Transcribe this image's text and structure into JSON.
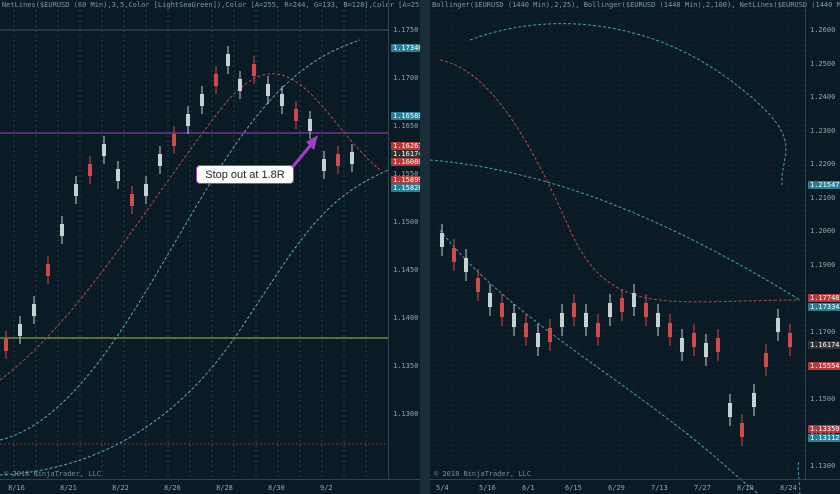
{
  "left_pane": {
    "header": "NetLines($EURUSD (60 Min),3,5,Color [LightSeaGreen]),Color [A=255, R=244, G=133, B=128],Color [A=255, R=0, G=131",
    "copyright": "© 2018 NinjaTrader, LLC",
    "x_labels": [
      "8/16",
      "8/21",
      "8/22",
      "8/26",
      "8/28",
      "8/30",
      "9/2"
    ],
    "y_labels": [
      "1.1750",
      "1.1700",
      "1.1650",
      "1.1550",
      "1.1500",
      "1.1450",
      "1.1400",
      "1.1350",
      "1.1300"
    ],
    "price_tags": [
      "1.17346",
      "1.16588",
      "1.16261",
      "1.16174",
      "1.16080",
      "1.15899",
      "1.15826"
    ],
    "price_tag_colors": [
      "#2a7f95",
      "#2a7f95",
      "#b33a3a",
      "#333333",
      "#b33a3a",
      "#b33a3a",
      "#2a7f95"
    ],
    "callout": "Stop out at 1.8R",
    "colors": {
      "purple_line": "#a040c0",
      "green_line": "#a8c040",
      "arrow": "#a040c0"
    }
  },
  "right_pane": {
    "header": "Bollinger($EURUSD (1440 Min),2,25), Bollinger($EURUSD (1440 Min),2,100), NetLines($EURUSD (1440 Min),3,5,Color",
    "copyright": "© 2018 NinjaTrader, LLC",
    "x_labels": [
      "5/4",
      "5/16",
      "6/1",
      "6/15",
      "6/29",
      "7/13",
      "7/27",
      "8/10",
      "8/24"
    ],
    "y_labels": [
      "1.2600",
      "1.2500",
      "1.2400",
      "1.2300",
      "1.2200",
      "1.2100",
      "1.2000",
      "1.1900",
      "1.1800",
      "1.1700",
      "1.1600",
      "1.1500",
      "1.1400",
      "1.1300"
    ],
    "price_tags": [
      "1.21547",
      "1.17748",
      "1.17334",
      "1.16174",
      "1.15554",
      "1.13359",
      "1.13112"
    ],
    "price_tag_colors": [
      "#2a7f95",
      "#b33a3a",
      "#2a7f95",
      "#333333",
      "#b33a3a",
      "#b33a3a",
      "#2a7f95"
    ]
  }
}
